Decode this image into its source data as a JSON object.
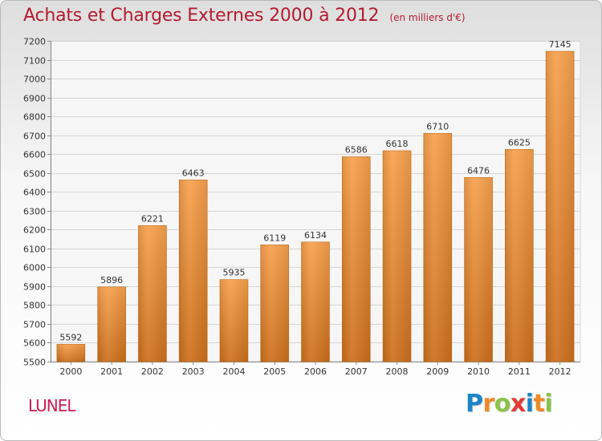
{
  "header": {
    "title": "Achats et Charges Externes 2000 à 2012",
    "subtitle": "(en milliers d'€)"
  },
  "footer": {
    "commune": "LUNEL",
    "brand": "Proxiti",
    "brand_letters": [
      {
        "char": "P",
        "color": "#1d84c6"
      },
      {
        "char": "r",
        "color": "#f08a24"
      },
      {
        "char": "o",
        "color": "#8bc34a"
      },
      {
        "char": "x",
        "color": "#e53935"
      },
      {
        "char": "i",
        "color": "#1d84c6"
      },
      {
        "char": "t",
        "color": "#f08a24"
      },
      {
        "char": "i",
        "color": "#8bc34a"
      }
    ]
  },
  "colors": {
    "title": "#b31b30",
    "bar_top": "#f7a14d",
    "bar_bottom": "#cc6f1b",
    "grid": "#d5d5d5",
    "axis_text": "#333333"
  },
  "chart_data": {
    "type": "bar",
    "title": "Achats et Charges Externes 2000 à 2012",
    "subtitle": "(en milliers d'€)",
    "categories": [
      "2000",
      "2001",
      "2002",
      "2003",
      "2004",
      "2005",
      "2006",
      "2007",
      "2008",
      "2009",
      "2010",
      "2011",
      "2012"
    ],
    "values": [
      5592,
      5896,
      6221,
      6463,
      5935,
      6119,
      6134,
      6586,
      6618,
      6710,
      6476,
      6625,
      7145
    ],
    "ylim": [
      5500,
      7200
    ],
    "y_ticks": [
      5500,
      5600,
      5700,
      5800,
      5900,
      6000,
      6100,
      6200,
      6300,
      6400,
      6500,
      6600,
      6700,
      6800,
      6900,
      7000,
      7100,
      7200
    ],
    "grid": true,
    "xlabel": "",
    "ylabel": ""
  }
}
